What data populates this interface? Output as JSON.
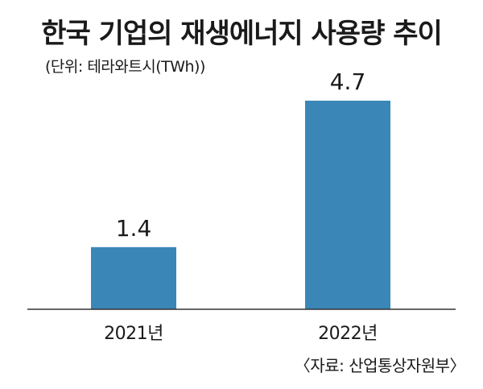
{
  "chart_data": {
    "type": "bar",
    "title": "한국 기업의 재생에너지 사용량 추이",
    "unit_note": "(단위: 테라와트시(TWh))",
    "source": "〈자료: 산업통상자원부〉",
    "categories": [
      "2021년",
      "2022년"
    ],
    "values": [
      1.4,
      4.7
    ],
    "value_labels": [
      "1.4",
      "4.7"
    ],
    "ylim": [
      0,
      4.7
    ],
    "grid": false,
    "legend": "none",
    "bar_color": "#3a87b7",
    "axis_color": "#333333"
  }
}
